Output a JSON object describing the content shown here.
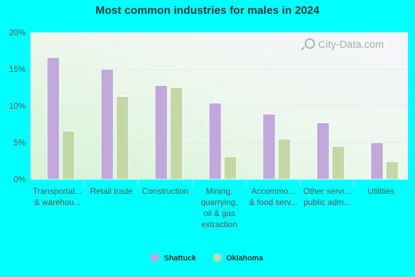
{
  "chart_data": {
    "type": "bar",
    "title": "Most common industries for males in 2024",
    "categories": [
      [
        "Transportat...",
        "& warehou..."
      ],
      [
        "Retail trade"
      ],
      [
        "Construction"
      ],
      [
        "Mining,",
        "quarrying,",
        "oil & gas",
        "extraction"
      ],
      [
        "Accommo...",
        "& food serv..."
      ],
      [
        "Other servi...",
        "public adm..."
      ],
      [
        "Utilities"
      ]
    ],
    "series": [
      {
        "name": "Shattuck",
        "color": "#c0a8da",
        "values": [
          16.6,
          15.0,
          12.8,
          10.4,
          8.9,
          7.7,
          5.0
        ]
      },
      {
        "name": "Oklahoma",
        "color": "#c4d8a6",
        "values": [
          6.6,
          11.3,
          12.5,
          3.1,
          5.5,
          4.5,
          2.4
        ]
      }
    ],
    "ylim": [
      0,
      20
    ],
    "yticks": [
      "0%",
      "5%",
      "10%",
      "15%",
      "20%"
    ],
    "grid": true,
    "legend_position": "bottom-center",
    "watermark": "City-Data.com"
  }
}
